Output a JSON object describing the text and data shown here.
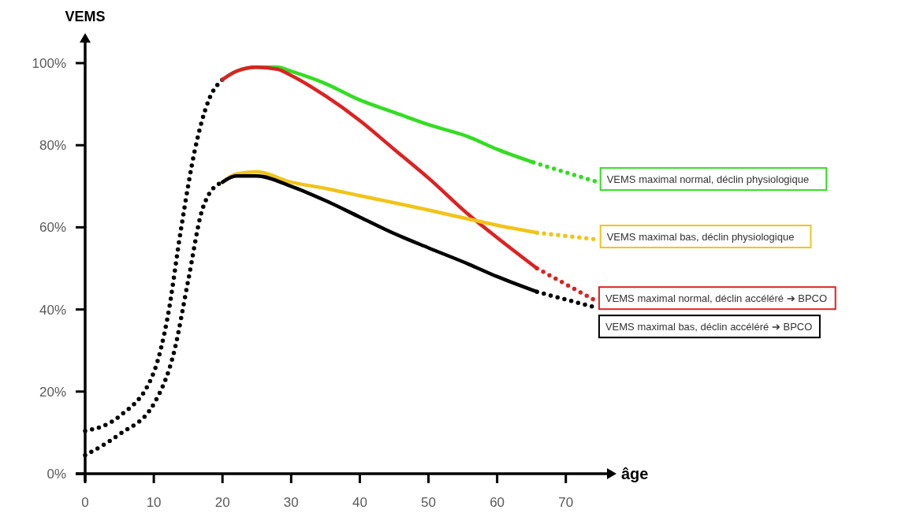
{
  "chart_data": {
    "type": "line",
    "xlabel": "âge",
    "ylabel": "VEMS",
    "xlim": [
      0,
      76
    ],
    "ylim": [
      0,
      105
    ],
    "xticks": [
      0,
      10,
      20,
      30,
      40,
      50,
      60,
      70
    ],
    "yticks": [
      {
        "value": 0,
        "label": "0%"
      },
      {
        "value": 20,
        "label": "20%"
      },
      {
        "value": 40,
        "label": "40%"
      },
      {
        "value": 60,
        "label": "60%"
      },
      {
        "value": 80,
        "label": "80%"
      },
      {
        "value": 100,
        "label": "100%"
      }
    ],
    "grid": false,
    "marker": "none",
    "series": [
      {
        "color": "#000000",
        "line_style": "dotted",
        "x": [
          0,
          5,
          10,
          12,
          14,
          16,
          18,
          20
        ],
        "values": [
          10.4,
          14,
          24.7,
          38,
          60,
          79,
          91,
          96
        ]
      },
      {
        "color": "#000000",
        "line_style": "dotted",
        "x": [
          0,
          5,
          10,
          13,
          15,
          17,
          18,
          20
        ],
        "values": [
          4.5,
          9.6,
          17,
          30,
          47,
          64,
          68,
          71
        ]
      },
      {
        "color": "#33dd22",
        "line_style": "solid",
        "x": [
          20,
          22,
          25,
          28,
          30,
          35,
          40,
          45,
          50,
          55.9,
          60,
          65.3
        ],
        "values": [
          96,
          98,
          99,
          99,
          98,
          95,
          91,
          88,
          85,
          82,
          79,
          75.8
        ]
      },
      {
        "color": "#dd2222",
        "line_style": "solid",
        "x": [
          20,
          22,
          25,
          28,
          30,
          35,
          40,
          45,
          50,
          55.9,
          60,
          65.8
        ],
        "values": [
          96,
          98,
          99,
          98.5,
          97,
          92,
          86,
          79,
          72,
          63,
          57.5,
          50
        ]
      },
      {
        "color": "#f0c419",
        "line_style": "solid",
        "x": [
          20,
          22,
          25,
          30,
          35,
          40,
          45,
          50,
          55.9,
          60,
          65.8
        ],
        "values": [
          71,
          73,
          73.5,
          71,
          69.5,
          67.7,
          66,
          64.2,
          62,
          60.5,
          58.7
        ]
      },
      {
        "color": "#000000",
        "line_style": "solid",
        "x": [
          20,
          22,
          25,
          30,
          35,
          40,
          45,
          50,
          55.9,
          60,
          65.8
        ],
        "values": [
          71,
          72.5,
          72.5,
          70,
          66.5,
          62.5,
          58.5,
          55,
          51,
          48,
          44.3
        ]
      },
      {
        "name": "VEMS maximal normal, déclin physiologique",
        "color": "#33dd22",
        "line_style": "dotted",
        "x": [
          65.3,
          74.7
        ],
        "values": [
          75.8,
          71
        ]
      },
      {
        "name": "VEMS maximal bas, déclin physiologique",
        "color": "#f0c419",
        "line_style": "dotted",
        "x": [
          65.8,
          74.7
        ],
        "values": [
          58.7,
          57
        ]
      },
      {
        "name": "VEMS maximal normal, déclin accéléré ➔ BPCO",
        "color": "#dd2222",
        "line_style": "dotted",
        "x": [
          65.8,
          74.5
        ],
        "values": [
          50,
          42
        ]
      },
      {
        "name": "VEMS maximal bas, déclin accéléré ➔ BPCO",
        "color": "#000000",
        "line_style": "dotted",
        "x": [
          65.8,
          74.5
        ],
        "values": [
          44.3,
          40.4
        ]
      }
    ]
  }
}
